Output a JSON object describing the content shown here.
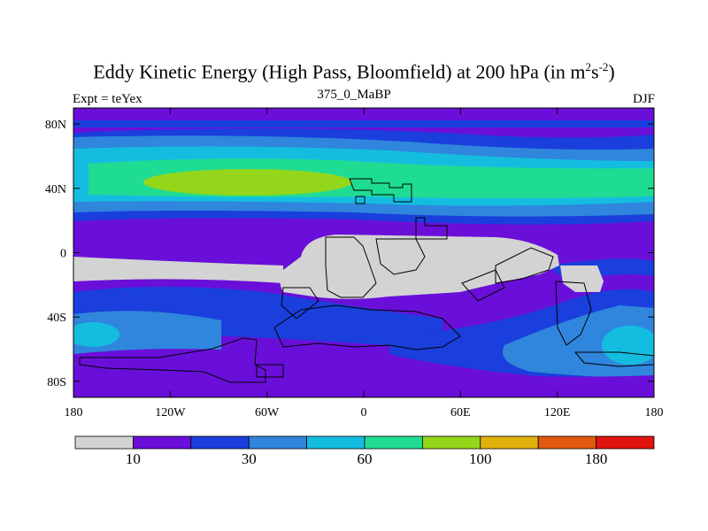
{
  "title": {
    "main": "Eddy Kinetic Energy (High Pass, Bloomfield) at 200 hPa (in m",
    "sup1": "2",
    "mid": "s",
    "sup2": "-2",
    "end": ")"
  },
  "subtitle": "375_0_MaBP",
  "left_label": "Expt = teYex",
  "right_label": "DJF",
  "lat_ticks": [
    "80N",
    "40N",
    "0",
    "40S",
    "80S"
  ],
  "lon_ticks": [
    "180",
    "120W",
    "60W",
    "0",
    "60E",
    "120E",
    "180"
  ],
  "colorbar": {
    "colors": [
      "#d3d3d3",
      "#6a0fd9",
      "#1a3fdc",
      "#2f86dc",
      "#14bde0",
      "#1fdc93",
      "#94d61a",
      "#e2b10c",
      "#e2580c",
      "#e0130f"
    ],
    "labels": [
      "10",
      "30",
      "60",
      "100",
      "180"
    ]
  },
  "colors": {
    "land": "#d3d3d3",
    "level1": "#6a0fd9",
    "level2": "#1a3fdc",
    "level3": "#2f86dc",
    "level4": "#14bde0",
    "level5": "#1fdc93",
    "level6": "#94d61a"
  }
}
